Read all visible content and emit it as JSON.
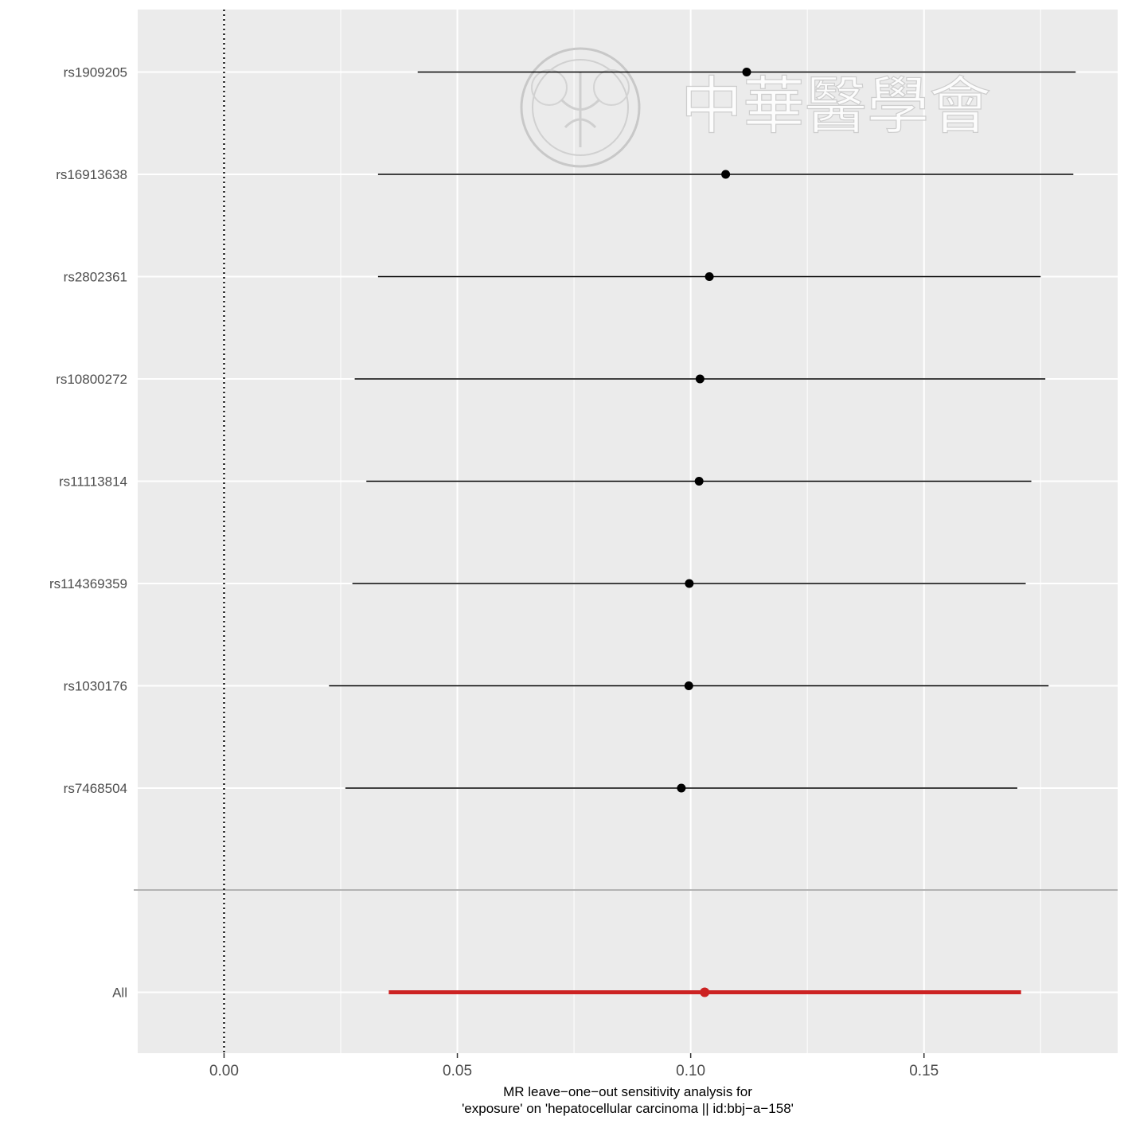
{
  "chart_data": {
    "type": "forest",
    "title": "",
    "xlabel_lines": [
      "MR leave−one−out sensitivity analysis for",
      "'exposure' on 'hepatocellular carcinoma || id:bbj−a−158'"
    ],
    "ylabel": "",
    "xlim": [
      -0.0185,
      0.1915
    ],
    "x_ticks": [
      0.0,
      0.05,
      0.1,
      0.15
    ],
    "x_tick_labels": [
      "0.00",
      "0.05",
      "0.10",
      "0.15"
    ],
    "reference_line": 0,
    "grid": true,
    "rows": [
      {
        "label": "rs1909205",
        "estimate": 0.112,
        "lower": 0.0415,
        "upper": 0.1825
      },
      {
        "label": "rs16913638",
        "estimate": 0.1075,
        "lower": 0.033,
        "upper": 0.182
      },
      {
        "label": "rs2802361",
        "estimate": 0.104,
        "lower": 0.033,
        "upper": 0.175
      },
      {
        "label": "rs10800272",
        "estimate": 0.102,
        "lower": 0.028,
        "upper": 0.176
      },
      {
        "label": "rs11113814",
        "estimate": 0.1018,
        "lower": 0.0305,
        "upper": 0.173
      },
      {
        "label": "rs114369359",
        "estimate": 0.0997,
        "lower": 0.0275,
        "upper": 0.1718
      },
      {
        "label": "rs1030176",
        "estimate": 0.0996,
        "lower": 0.0225,
        "upper": 0.1767
      },
      {
        "label": "rs7468504",
        "estimate": 0.098,
        "lower": 0.026,
        "upper": 0.17
      }
    ],
    "overall": {
      "label": "All",
      "estimate": 0.103,
      "lower": 0.0353,
      "upper": 0.1708
    },
    "colors": {
      "panel_bg": "#ebebeb",
      "grid": "#ffffff",
      "point": "#000000",
      "overall": "#cc2222",
      "separator": "#b3b3b3"
    }
  },
  "watermark": {
    "text": "中華醫學會",
    "emblem": "society-seal"
  }
}
